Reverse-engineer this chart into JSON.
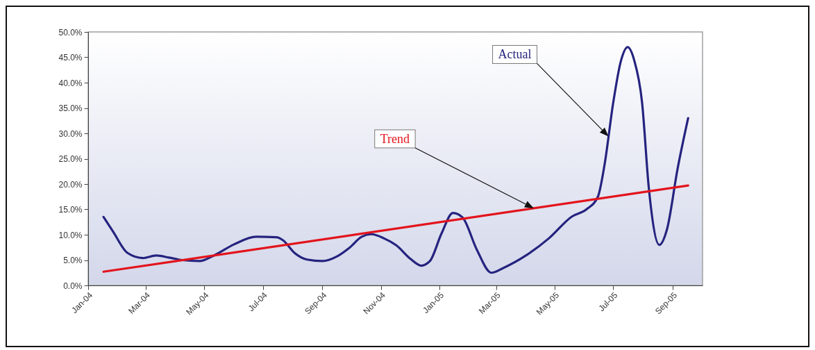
{
  "chart_data": {
    "type": "line",
    "xlim": [
      "2004-01-01",
      "2005-10-02"
    ],
    "xticks": [
      {
        "value": "2004-01-01",
        "label": "Jan-04"
      },
      {
        "value": "2004-03-01",
        "label": "Mar-04"
      },
      {
        "value": "2004-05-01",
        "label": "May-04"
      },
      {
        "value": "2004-07-01",
        "label": "Jul-04"
      },
      {
        "value": "2004-09-01",
        "label": "Sep-04"
      },
      {
        "value": "2004-11-01",
        "label": "Nov-04"
      },
      {
        "value": "2005-01-01",
        "label": "Jan-05"
      },
      {
        "value": "2005-03-01",
        "label": "Mar-05"
      },
      {
        "value": "2005-05-01",
        "label": "May-05"
      },
      {
        "value": "2005-07-01",
        "label": "Jul-05"
      },
      {
        "value": "2005-09-01",
        "label": "Sep-05"
      }
    ],
    "ylim": [
      0,
      50
    ],
    "yticks": [
      {
        "value": 0,
        "label": "0.0%"
      },
      {
        "value": 5,
        "label": "5.0%"
      },
      {
        "value": 10,
        "label": "10.0%"
      },
      {
        "value": 15,
        "label": "15.0%"
      },
      {
        "value": 20,
        "label": "20.0%"
      },
      {
        "value": 25,
        "label": "25.0%"
      },
      {
        "value": 30,
        "label": "30.0%"
      },
      {
        "value": 35,
        "label": "35.0%"
      },
      {
        "value": 40,
        "label": "40.0%"
      },
      {
        "value": 45,
        "label": "45.0%"
      },
      {
        "value": 50,
        "label": "50.0%"
      }
    ],
    "grid": false,
    "legend": false,
    "series": [
      {
        "name": "Actual",
        "color": "#25237f",
        "x": [
          "2004-01-17",
          "2004-01-27",
          "2004-02-11",
          "2004-02-27",
          "2004-03-12",
          "2004-03-25",
          "2004-04-08",
          "2004-04-26",
          "2004-05-11",
          "2004-06-01",
          "2004-06-24",
          "2004-07-15",
          "2004-07-22",
          "2004-08-03",
          "2004-08-16",
          "2004-09-01",
          "2004-09-16",
          "2004-09-29",
          "2004-10-12",
          "2004-10-22",
          "2004-11-04",
          "2004-11-17",
          "2004-12-02",
          "2004-12-13",
          "2004-12-22",
          "2005-01-03",
          "2005-01-15",
          "2005-01-25",
          "2005-02-09",
          "2005-02-24",
          "2005-03-08",
          "2005-04-01",
          "2005-04-25",
          "2005-05-19",
          "2005-06-03",
          "2005-06-15",
          "2005-06-22",
          "2005-07-01",
          "2005-07-09",
          "2005-07-16",
          "2005-07-23",
          "2005-07-31",
          "2005-08-07",
          "2005-08-18",
          "2005-08-26",
          "2005-09-06",
          "2005-09-17"
        ],
        "values": [
          13.5,
          10.6,
          6.4,
          5.4,
          5.9,
          5.5,
          5.0,
          4.8,
          5.9,
          8.1,
          9.6,
          9.5,
          8.9,
          6.4,
          5.1,
          4.8,
          5.7,
          7.4,
          9.6,
          10.1,
          9.3,
          7.9,
          5.2,
          3.9,
          4.8,
          10.2,
          14.3,
          13.4,
          7.0,
          2.5,
          3.4,
          5.9,
          9.3,
          13.6,
          15.0,
          17.5,
          23.9,
          36.1,
          44.3,
          47.0,
          44.3,
          36.1,
          19.3,
          8.0,
          11.1,
          23.0,
          33.0
        ]
      },
      {
        "name": "Trend",
        "color": "#e3141c",
        "x": [
          "2004-01-17",
          "2005-09-17"
        ],
        "values": [
          2.7,
          19.7
        ]
      }
    ]
  }
}
